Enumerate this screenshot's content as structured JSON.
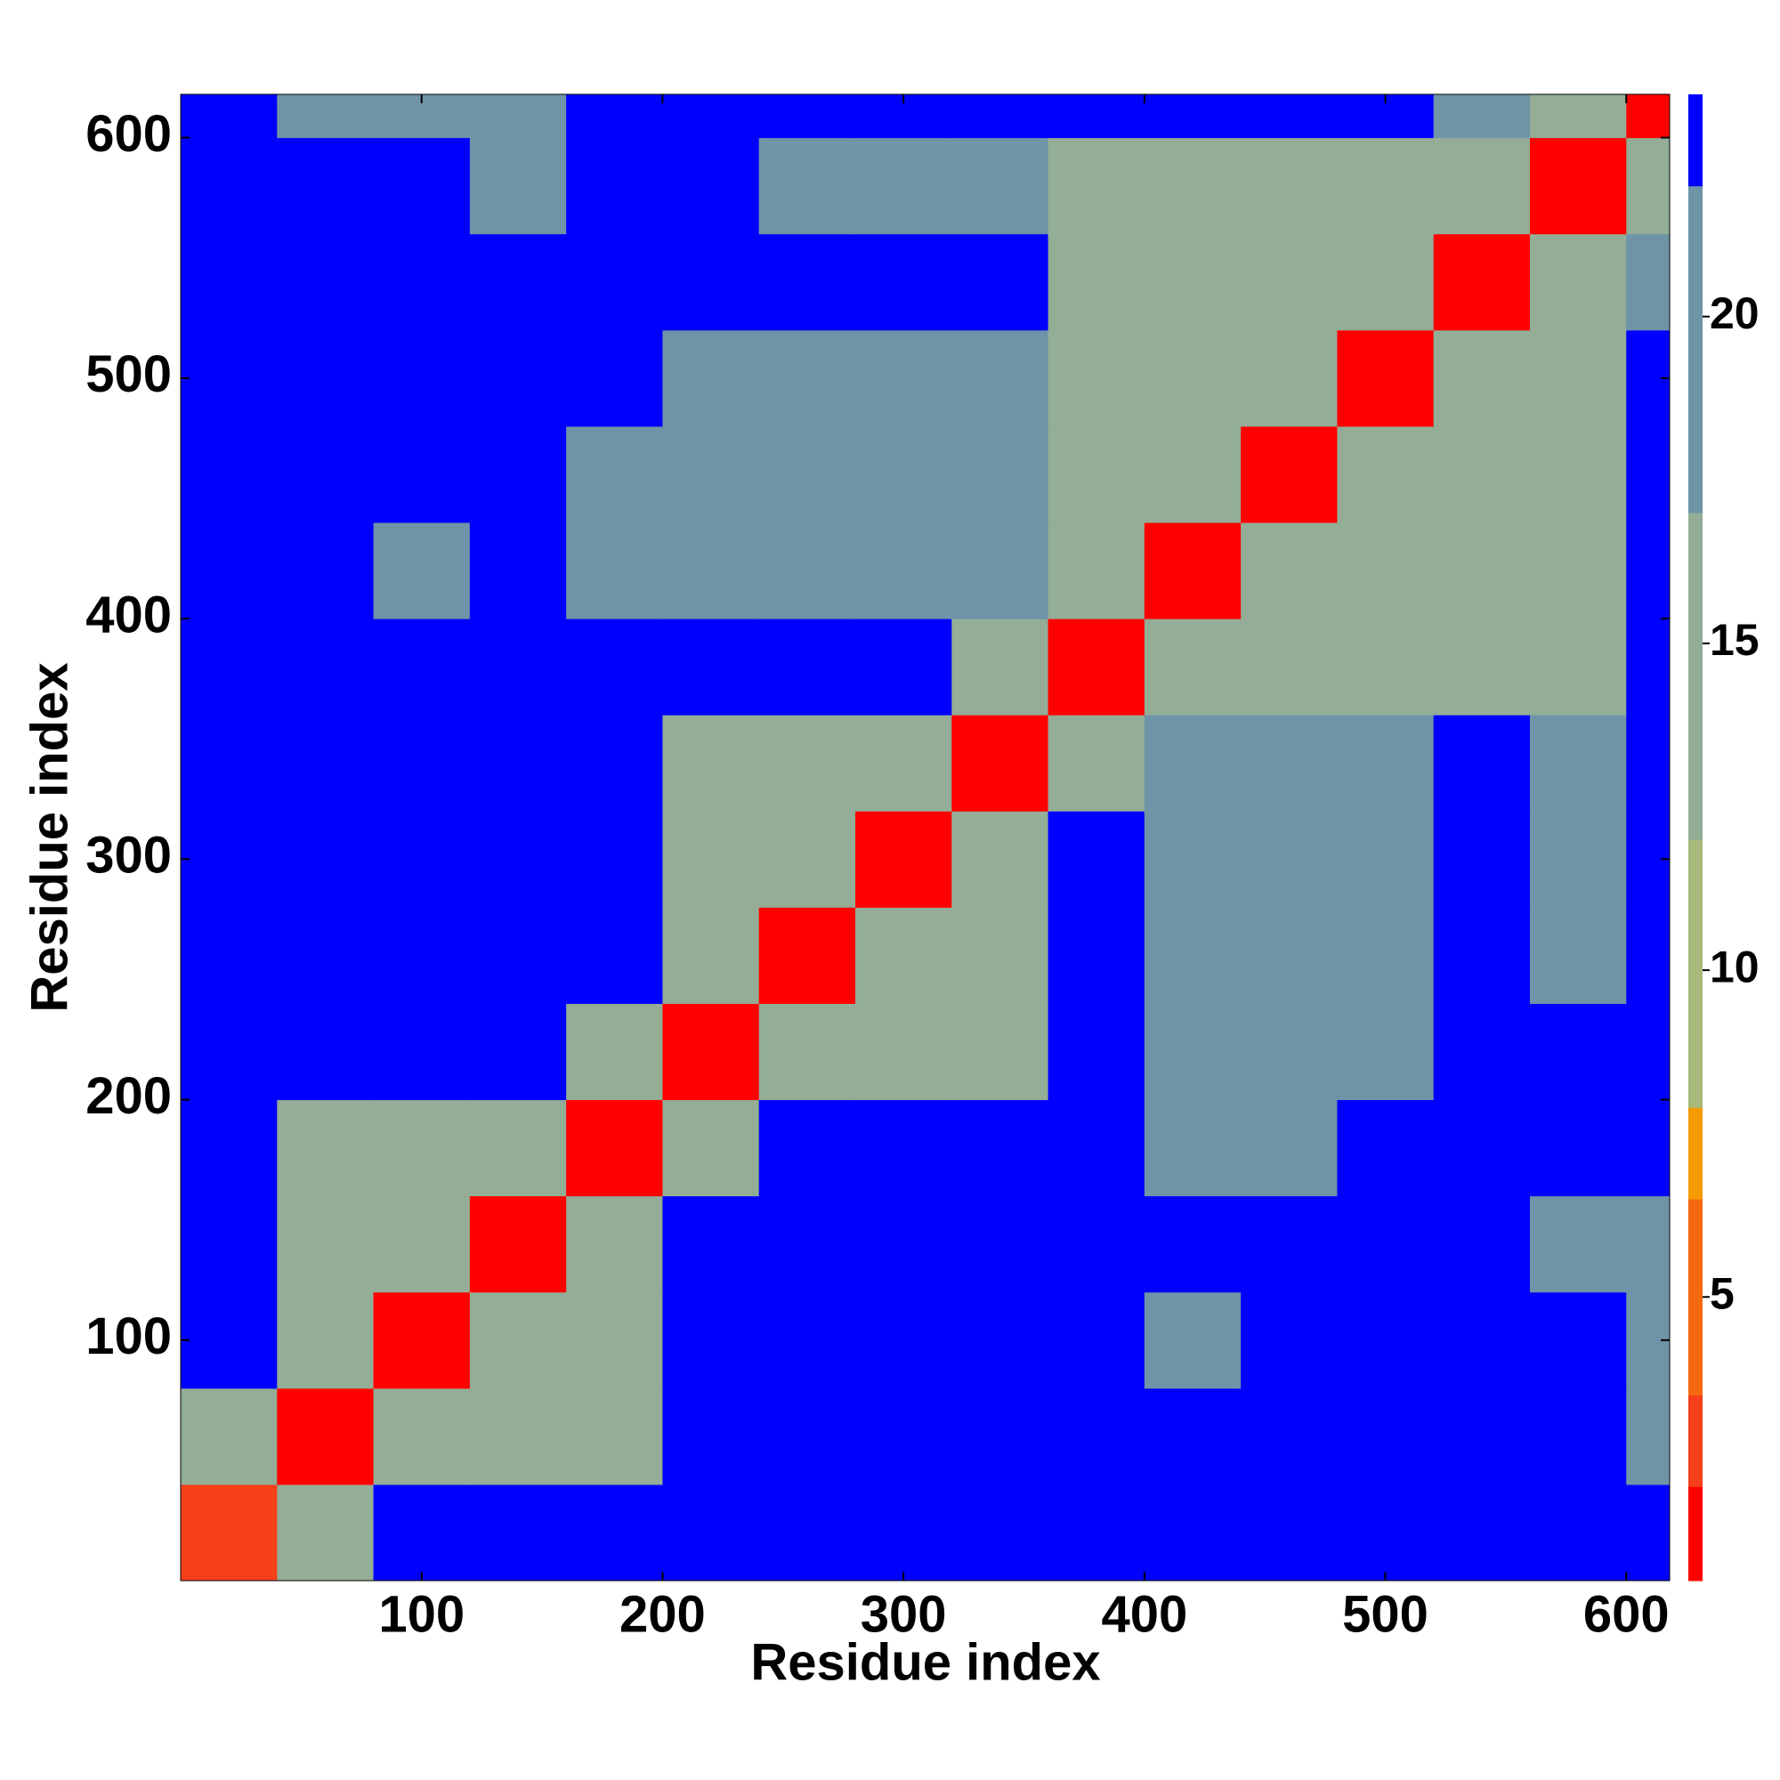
{
  "chart_data": {
    "type": "heatmap",
    "xlabel": "Residue index",
    "ylabel": "Residue index",
    "xlim": [
      0,
      618
    ],
    "ylim": [
      0,
      618
    ],
    "xticks": [
      100,
      200,
      300,
      400,
      500,
      600
    ],
    "yticks": [
      100,
      200,
      300,
      400,
      500,
      600
    ],
    "x_edges": [
      0,
      40,
      80,
      120,
      160,
      200,
      240,
      280,
      320,
      360,
      400,
      440,
      480,
      520,
      560,
      600,
      618
    ],
    "y_edges": [
      0,
      40,
      80,
      120,
      160,
      200,
      240,
      280,
      320,
      360,
      400,
      440,
      480,
      520,
      560,
      600,
      618
    ],
    "z": [
      [
        3,
        12,
        23,
        23,
        23,
        23,
        23,
        23,
        23,
        23,
        23,
        23,
        23,
        23,
        23,
        23
      ],
      [
        12,
        2,
        12,
        12,
        12,
        23,
        23,
        23,
        23,
        23,
        23,
        23,
        23,
        23,
        23,
        17
      ],
      [
        23,
        12,
        2,
        12,
        12,
        23,
        23,
        23,
        23,
        23,
        18,
        23,
        23,
        23,
        23,
        17
      ],
      [
        23,
        12,
        12,
        2,
        12,
        23,
        23,
        23,
        23,
        23,
        23,
        23,
        23,
        23,
        18,
        17
      ],
      [
        23,
        12,
        12,
        12,
        2,
        12,
        23,
        23,
        23,
        23,
        18,
        18,
        23,
        23,
        23,
        23
      ],
      [
        23,
        23,
        23,
        23,
        12,
        2,
        12,
        12,
        12,
        23,
        17,
        17,
        17,
        23,
        23,
        23
      ],
      [
        23,
        23,
        23,
        23,
        23,
        12,
        2,
        12,
        12,
        23,
        17,
        17,
        17,
        23,
        17,
        23
      ],
      [
        23,
        23,
        23,
        23,
        23,
        12,
        12,
        2,
        12,
        23,
        17,
        17,
        17,
        23,
        17,
        23
      ],
      [
        23,
        23,
        23,
        23,
        23,
        12,
        12,
        12,
        2,
        12,
        17,
        17,
        17,
        23,
        18,
        23
      ],
      [
        23,
        23,
        23,
        23,
        23,
        23,
        23,
        23,
        12,
        2,
        12,
        12,
        12,
        15,
        15,
        23
      ],
      [
        23,
        23,
        18,
        23,
        18,
        17,
        17,
        17,
        17,
        12,
        2,
        12,
        12,
        15,
        15,
        23
      ],
      [
        23,
        23,
        23,
        23,
        18,
        17,
        17,
        17,
        17,
        12,
        12,
        2,
        12,
        15,
        15,
        23
      ],
      [
        23,
        23,
        23,
        23,
        23,
        17,
        17,
        17,
        17,
        12,
        12,
        12,
        2,
        15,
        15,
        23
      ],
      [
        23,
        23,
        23,
        23,
        23,
        23,
        23,
        23,
        23,
        15,
        15,
        15,
        15,
        2,
        12,
        18
      ],
      [
        23,
        23,
        23,
        18,
        23,
        23,
        17,
        17,
        18,
        15,
        15,
        15,
        15,
        12,
        2,
        12
      ],
      [
        23,
        17,
        17,
        17,
        23,
        23,
        23,
        23,
        23,
        23,
        23,
        23,
        23,
        18,
        12,
        2
      ]
    ],
    "zlim": [
      0.66,
      23.4
    ],
    "levels": [
      0.66,
      2.1,
      3.5,
      6.5,
      7.9,
      12,
      17,
      22,
      23.4
    ],
    "colors": [
      "#ff0000",
      "#f5401a",
      "#f56a10",
      "#f59a00",
      "#a8ba7c",
      "#93ad96",
      "#6f94a8",
      "#0000ff"
    ],
    "colorbar_ticks": [
      5,
      10,
      15,
      20
    ]
  }
}
